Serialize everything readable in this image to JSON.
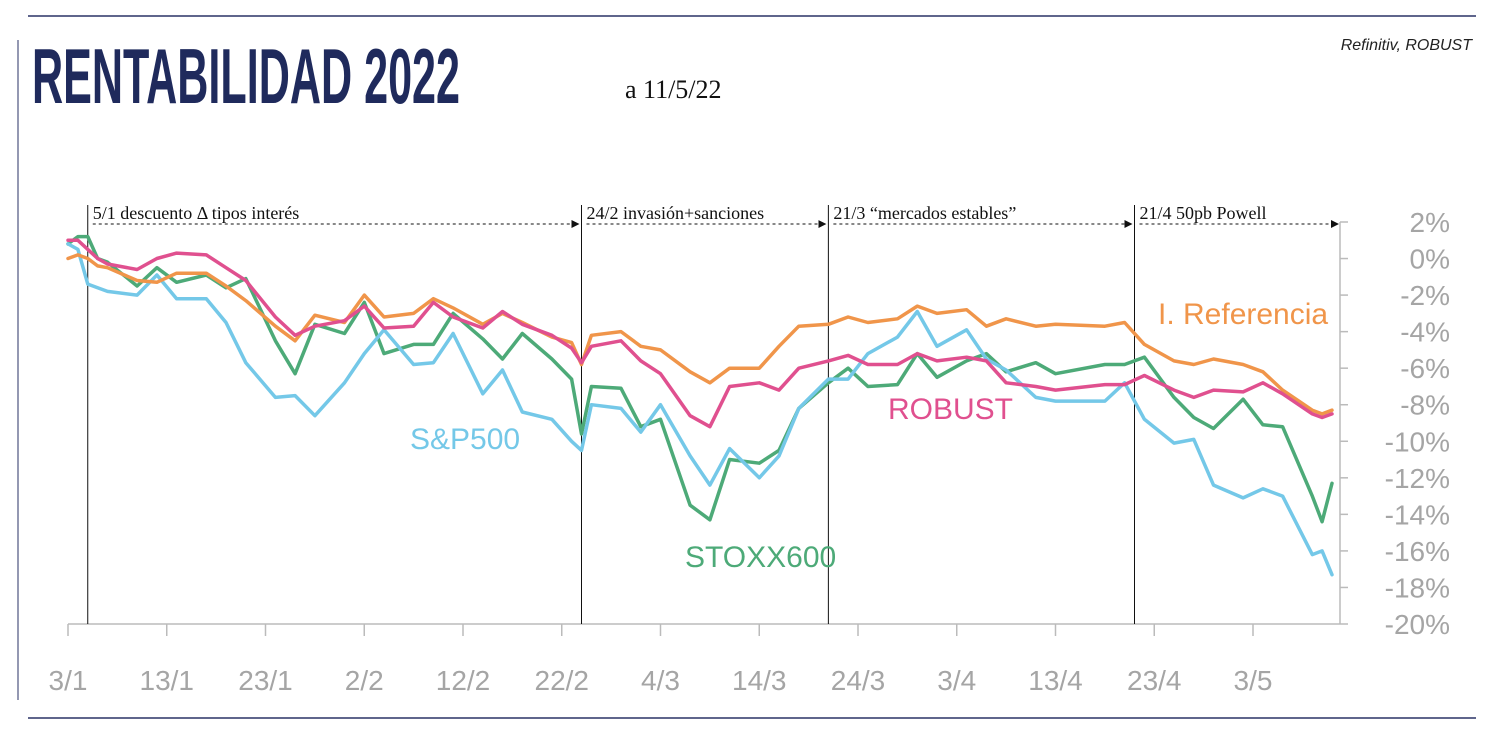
{
  "chart_data": {
    "type": "line",
    "title": "RENTABILIDAD 2022",
    "subtitle": "a 11/5/22",
    "source": "Refinitiv, ROBUST",
    "x": [
      "3/1",
      "4/1",
      "5/1",
      "6/1",
      "7/1",
      "10/1",
      "12/1",
      "14/1",
      "17/1",
      "19/1",
      "21/1",
      "24/1",
      "26/1",
      "28/1",
      "31/1",
      "2/2",
      "4/2",
      "7/2",
      "9/2",
      "11/2",
      "14/2",
      "16/2",
      "18/2",
      "21/2",
      "23/2",
      "24/2",
      "25/2",
      "28/2",
      "2/3",
      "4/3",
      "7/3",
      "9/3",
      "11/3",
      "14/3",
      "16/3",
      "18/3",
      "21/3",
      "23/3",
      "25/3",
      "28/3",
      "30/3",
      "1/4",
      "4/4",
      "6/4",
      "8/4",
      "11/4",
      "13/4",
      "18/4",
      "20/4",
      "22/4",
      "25/4",
      "27/4",
      "29/4",
      "2/5",
      "4/5",
      "6/5",
      "9/5",
      "10/5",
      "11/5"
    ],
    "series": [
      {
        "name": "I. Referencia",
        "color": "#f0954a",
        "values": [
          0,
          0.2,
          0,
          -0.4,
          -0.5,
          -1.2,
          -1.3,
          -0.8,
          -0.8,
          -1.5,
          -2.3,
          -3.7,
          -4.5,
          -3.1,
          -3.5,
          -2,
          -3.2,
          -3,
          -2.2,
          -2.7,
          -3.6,
          -3,
          -3.5,
          -4.3,
          -4.6,
          -5.8,
          -4.2,
          -4,
          -4.8,
          -5,
          -6.2,
          -6.8,
          -6,
          -6,
          -4.8,
          -3.7,
          -3.6,
          -3.2,
          -3.5,
          -3.3,
          -2.6,
          -3,
          -2.8,
          -3.7,
          -3.3,
          -3.7,
          -3.6,
          -3.7,
          -3.5,
          -4.7,
          -5.6,
          -5.8,
          -5.5,
          -5.8,
          -6.2,
          -7.2,
          -8.3,
          -8.5,
          -8.3
        ]
      },
      {
        "name": "ROBUST",
        "color": "#e0508f",
        "values": [
          1,
          1,
          0.5,
          0,
          -0.3,
          -0.6,
          0,
          0.3,
          0.2,
          -0.5,
          -1.2,
          -3.2,
          -4.2,
          -3.7,
          -3.4,
          -2.6,
          -3.8,
          -3.7,
          -2.4,
          -3.2,
          -3.8,
          -2.9,
          -3.6,
          -4.2,
          -4.9,
          -5.7,
          -4.8,
          -4.5,
          -5.6,
          -6.3,
          -8.6,
          -9.2,
          -7,
          -6.8,
          -7.2,
          -6,
          -5.6,
          -5.3,
          -5.8,
          -5.8,
          -5.2,
          -5.6,
          -5.4,
          -5.6,
          -6.8,
          -7,
          -7.2,
          -6.9,
          -6.9,
          -6.4,
          -7.2,
          -7.6,
          -7.2,
          -7.3,
          -6.8,
          -7.4,
          -8.5,
          -8.7,
          -8.5
        ]
      },
      {
        "name": "S&P500",
        "color": "#74c8e8",
        "values": [
          0.8,
          0.5,
          -1.4,
          -1.6,
          -1.8,
          -2,
          -0.9,
          -2.2,
          -2.2,
          -3.5,
          -5.7,
          -7.6,
          -7.5,
          -8.6,
          -6.8,
          -5.2,
          -3.9,
          -5.8,
          -5.7,
          -4.1,
          -7.4,
          -6.1,
          -8.4,
          -8.8,
          -10,
          -10.5,
          -8,
          -8.2,
          -9.5,
          -8,
          -10.8,
          -12.4,
          -10.4,
          -12,
          -10.8,
          -8.2,
          -6.6,
          -6.6,
          -5.2,
          -4.3,
          -2.9,
          -4.8,
          -3.9,
          -5.5,
          -6.1,
          -7.6,
          -7.8,
          -7.8,
          -6.8,
          -8.8,
          -10.1,
          -9.9,
          -12.4,
          -13.1,
          -12.6,
          -13,
          -16.2,
          -16,
          -17.3
        ]
      },
      {
        "name": "STOXX600",
        "color": "#4daa78",
        "values": [
          0.8,
          1.2,
          1.2,
          0,
          -0.2,
          -1.5,
          -0.5,
          -1.3,
          -0.9,
          -1.6,
          -1.1,
          -4.5,
          -6.3,
          -3.6,
          -4.1,
          -2.4,
          -5.2,
          -4.7,
          -4.7,
          -3,
          -4.4,
          -5.5,
          -4.1,
          -5.5,
          -6.6,
          -9.6,
          -7,
          -7.1,
          -9.2,
          -8.8,
          -13.5,
          -14.3,
          -11,
          -11.2,
          -10.5,
          -8.2,
          -6.8,
          -6,
          -7,
          -6.9,
          -5.2,
          -6.5,
          -5.6,
          -5.2,
          -6.2,
          -5.7,
          -6.3,
          -5.8,
          -5.8,
          -5.4,
          -7.6,
          -8.7,
          -9.3,
          -7.7,
          -9.1,
          -9.2,
          -13,
          -14.4,
          -12.3
        ]
      }
    ],
    "xlim": [
      "3/1",
      "11/5"
    ],
    "xticks": [
      "3/1",
      "13/1",
      "23/1",
      "2/2",
      "12/2",
      "22/2",
      "4/3",
      "14/3",
      "24/3",
      "3/4",
      "13/4",
      "23/4",
      "3/5"
    ],
    "ylim": [
      -20,
      2
    ],
    "yticks": [
      {
        "value": 2,
        "label": "2%"
      },
      {
        "value": 0,
        "label": "0%"
      },
      {
        "value": -2,
        "label": "-2%"
      },
      {
        "value": -4,
        "label": "-4%"
      },
      {
        "value": -6,
        "label": "-6%"
      },
      {
        "value": -8,
        "label": "-8%"
      },
      {
        "value": -10,
        "label": "-10%"
      },
      {
        "value": -12,
        "label": "-12%"
      },
      {
        "value": -14,
        "label": "-14%"
      },
      {
        "value": -16,
        "label": "-16%"
      },
      {
        "value": -18,
        "label": "-18%"
      },
      {
        "value": -20,
        "label": "-20%"
      }
    ],
    "events": [
      {
        "date": "5/1",
        "label": "5/1 descuento Δ tipos interés"
      },
      {
        "date": "24/2",
        "label": "24/2 invasión+sanciones"
      },
      {
        "date": "21/3",
        "label": "21/3 “mercados estables”"
      },
      {
        "date": "21/4",
        "label": "21/4 50pb Powell"
      }
    ]
  }
}
